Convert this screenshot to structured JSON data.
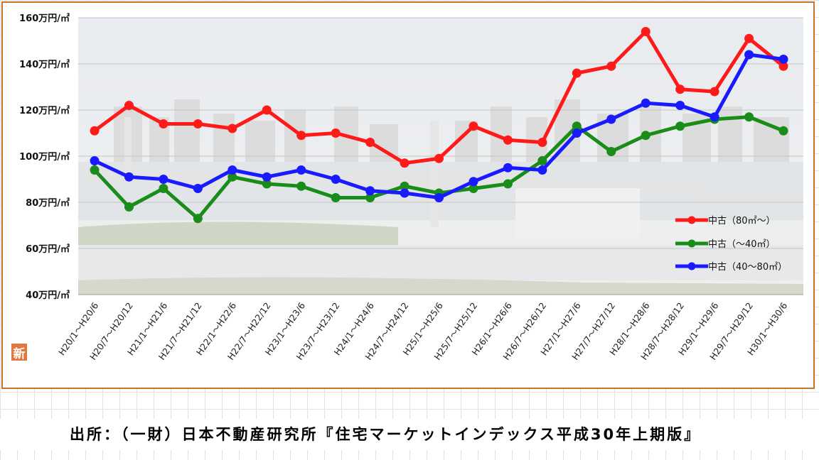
{
  "badge_label": "新",
  "source_note": "出所：（一財）日本不動産研究所『住宅マーケットインデックス平成30年上期版』",
  "chart_data": {
    "type": "line",
    "title": "",
    "xlabel": "",
    "ylabel": "",
    "ylim": [
      40,
      160
    ],
    "yticks": [
      40,
      60,
      80,
      100,
      120,
      140,
      160
    ],
    "ytick_labels": [
      "40万円/㎡",
      "60万円/㎡",
      "80万円/㎡",
      "100万円/㎡",
      "120万円/㎡",
      "140万円/㎡",
      "160万円/㎡"
    ],
    "grid": true,
    "legend_position": "bottom-right",
    "categories": [
      "H20/1～H20/6",
      "H20/7～H20/12",
      "H21/1～H21/6",
      "H21/7～H21/12",
      "H22/1～H22/6",
      "H22/7～H22/12",
      "H23/1～H23/6",
      "H23/7～H23/12",
      "H24/1～H24/6",
      "H24/7～H24/12",
      "H25/1～H25/6",
      "H25/7～H25/12",
      "H26/1～H26/6",
      "H26/7～H26/12",
      "H27/1～H27/6",
      "H27/7～H27/12",
      "H28/1～H28/6",
      "H28/7～H28/12",
      "H29/1～H29/6",
      "H29/7～H29/12",
      "H30/1～H30/6"
    ],
    "series": [
      {
        "name": "中古（80㎡～）",
        "color": "#ff1a1a",
        "values": [
          111,
          122,
          114,
          114,
          112,
          120,
          109,
          110,
          106,
          97,
          99,
          113,
          107,
          106,
          136,
          139,
          154,
          129,
          128,
          151,
          139
        ]
      },
      {
        "name": "中古（～40㎡）",
        "color": "#1a8c1a",
        "values": [
          94,
          78,
          86,
          73,
          91,
          88,
          87,
          82,
          82,
          87,
          84,
          86,
          88,
          98,
          113,
          102,
          109,
          113,
          116,
          117,
          111
        ]
      },
      {
        "name": "中古（40～80㎡）",
        "color": "#1a1aff",
        "values": [
          98,
          91,
          90,
          86,
          94,
          91,
          94,
          90,
          85,
          84,
          82,
          89,
          95,
          94,
          110,
          116,
          123,
          122,
          117,
          144,
          142
        ]
      }
    ]
  }
}
